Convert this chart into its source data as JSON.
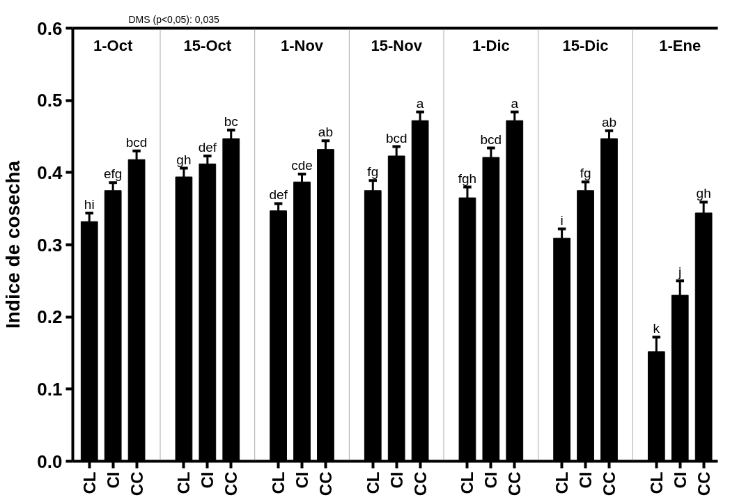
{
  "chart_data": {
    "type": "bar",
    "ylabel": "Indice de cosecha",
    "annotations": [
      "DMS (p<0,05): 0,035",
      "1-Oct",
      "15-Oct",
      "1-Nov",
      "15-Nov",
      "1-Dic",
      "15-Dic",
      "1-Ene"
    ],
    "categories": [
      "CL",
      "CI",
      "CC",
      "CL",
      "CI",
      "CC",
      "CL",
      "CI",
      "CC",
      "CL",
      "CI",
      "CC",
      "CL",
      "CI",
      "CC",
      "CL",
      "CI",
      "CC",
      "CL",
      "CI",
      "CC"
    ],
    "values": [
      0.332,
      0.375,
      0.418,
      0.394,
      0.412,
      0.447,
      0.347,
      0.387,
      0.432,
      0.375,
      0.423,
      0.472,
      0.365,
      0.421,
      0.472,
      0.309,
      0.375,
      0.447,
      0.152,
      0.23,
      0.344
    ],
    "errors": [
      [
        0.332,
        0.344
      ],
      [
        0.375,
        0.386
      ],
      [
        0.418,
        0.43
      ],
      [
        0.394,
        0.406
      ],
      [
        0.412,
        0.423
      ],
      [
        0.447,
        0.459
      ],
      [
        0.347,
        0.357
      ],
      [
        0.387,
        0.398
      ],
      [
        0.432,
        0.444
      ],
      [
        0.375,
        0.389
      ],
      [
        0.423,
        0.436
      ],
      [
        0.472,
        0.484
      ],
      [
        0.365,
        0.38
      ],
      [
        0.421,
        0.434
      ],
      [
        0.472,
        0.484
      ],
      [
        0.309,
        0.322
      ],
      [
        0.375,
        0.387
      ],
      [
        0.447,
        0.458
      ],
      [
        0.152,
        0.172
      ],
      [
        0.23,
        0.25
      ],
      [
        0.344,
        0.359
      ]
    ],
    "value_labels": [
      "hi",
      "efg",
      "bcd",
      "gh",
      "def",
      "bc",
      "def",
      "cde",
      "ab",
      "fg",
      "bcd",
      "a",
      "fgh",
      "bcd",
      "a",
      "i",
      "fg",
      "ab",
      "k",
      "j",
      "gh"
    ],
    "color": "#000000",
    "ylim": [
      0,
      0.6
    ],
    "yticks": [
      {
        "value": 0,
        "label": "0.0"
      },
      {
        "value": 0.1,
        "label": "0.1"
      },
      {
        "value": 0.2,
        "label": "0.2"
      },
      {
        "value": 0.3,
        "label": "0.3"
      },
      {
        "value": 0.4,
        "label": "0.4"
      },
      {
        "value": 0.5,
        "label": "0.5"
      },
      {
        "value": 0.6,
        "label": "0.6"
      }
    ],
    "grid": false
  }
}
